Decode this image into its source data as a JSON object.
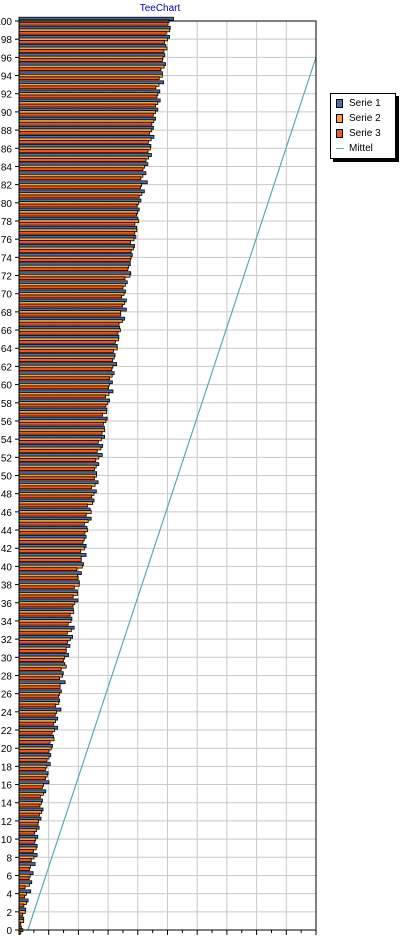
{
  "chart_data": {
    "type": "bar",
    "orientation": "horizontal",
    "title": "TeeChart",
    "xlabel": "",
    "ylabel": "",
    "ylim": [
      0,
      100
    ],
    "xlim": [
      0,
      100
    ],
    "ytick_step": 2,
    "grid": true,
    "legend_position": "right",
    "categories_range": [
      0,
      100
    ],
    "series": [
      {
        "name": "Serie 1",
        "type": "bar",
        "color": "#4a6fa5",
        "offset": 1.5,
        "slope": 0.5,
        "noise": 1.4
      },
      {
        "name": "Serie 2",
        "type": "bar",
        "color": "#ffa033",
        "offset": 0.8,
        "slope": 0.5,
        "noise": 1.2
      },
      {
        "name": "Serie 3",
        "type": "bar",
        "color": "#ee5522",
        "offset": 0.0,
        "slope": 0.5,
        "noise": 1.0
      },
      {
        "name": "Mittel",
        "type": "line",
        "color": "#5aa8b8",
        "x_start": 3,
        "x_end": 100
      }
    ]
  }
}
